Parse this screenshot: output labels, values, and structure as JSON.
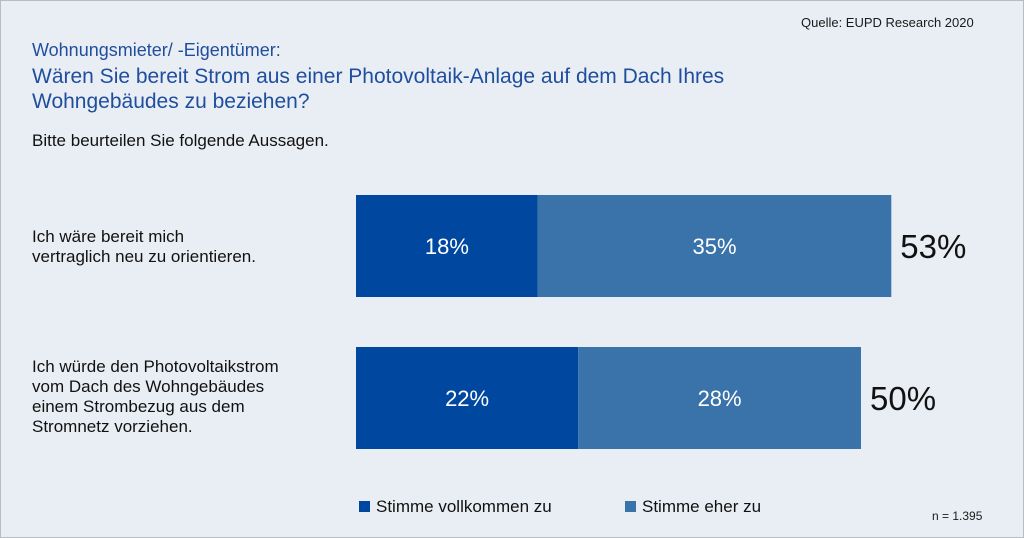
{
  "source": "Quelle: EUPD Research 2020",
  "subtitle": "Wohnungsmieter/ -Eigentümer:",
  "question": "Wären Sie bereit Strom aus einer Photovoltaik-Anlage auf dem Dach Ihres Wohngebäudes zu beziehen?",
  "instruction": "Bitte beurteilen Sie folgende Aussagen.",
  "n_note": "n = 1.395",
  "colors": {
    "background": "#e9eef4",
    "dark_blue": "#0047a0",
    "mid_blue": "#3a72aa"
  },
  "chart_data": {
    "type": "bar",
    "orientation": "horizontal",
    "stacked": true,
    "categories": [
      "Ich wäre bereit mich vertraglich neu zu orientieren.",
      "Ich würde den Photovoltaikstrom vom Dach des Wohngebäudes einem Strombezug aus dem Stromnetz vorziehen."
    ],
    "category_lines": [
      [
        "Ich wäre bereit mich",
        "vertraglich neu zu orientieren."
      ],
      [
        "Ich würde den Photovoltaikstrom",
        "vom Dach des Wohngebäudes",
        "einem Strombezug aus dem",
        "Stromnetz vorziehen."
      ]
    ],
    "series": [
      {
        "name": "Stimme vollkommen zu",
        "values": [
          18,
          22
        ],
        "labels": [
          "18%",
          "22%"
        ],
        "color": "#0047a0"
      },
      {
        "name": "Stimme eher zu",
        "values": [
          35,
          28
        ],
        "labels": [
          "35%",
          "28%"
        ],
        "color": "#3a72aa"
      }
    ],
    "totals": [
      53,
      50
    ],
    "total_labels": [
      "53%",
      "50%"
    ],
    "unit": "%",
    "legend_position": "bottom",
    "grid": false
  }
}
